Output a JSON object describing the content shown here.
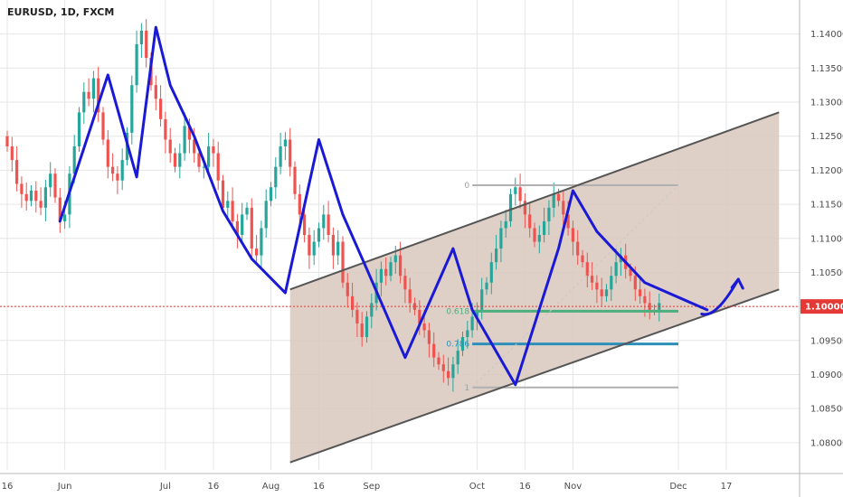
{
  "chart_data": {
    "type": "candlestick",
    "title": "EURUSD, 1D, FXCM",
    "grid": true,
    "ylim": [
      1.076,
      1.145
    ],
    "y_ticks": [
      "1.14000",
      "1.13500",
      "1.13000",
      "1.12500",
      "1.12000",
      "1.11500",
      "1.11000",
      "1.10500",
      "1.10000",
      "1.09500",
      "1.09000",
      "1.08500",
      "1.08000"
    ],
    "x_ticks": [
      {
        "label": "16",
        "index": 0
      },
      {
        "label": "Jun",
        "index": 12
      },
      {
        "label": "Jul",
        "index": 33
      },
      {
        "label": "16",
        "index": 43
      },
      {
        "label": "Aug",
        "index": 55
      },
      {
        "label": "16",
        "index": 65
      },
      {
        "label": "Sep",
        "index": 76
      },
      {
        "label": "Oct",
        "index": 98
      },
      {
        "label": "16",
        "index": 108
      },
      {
        "label": "Nov",
        "index": 118
      },
      {
        "label": "Dec",
        "index": 140
      },
      {
        "label": "17",
        "index": 150
      }
    ],
    "current_price": "1.10000",
    "colors": {
      "up": "#26a69a",
      "down": "#ef5350",
      "drawing": "#1a1ad6",
      "channel": "#555555",
      "fill": "#d9c8bd",
      "current": "#e53935"
    },
    "close": [
      1.1235,
      1.1215,
      1.118,
      1.1165,
      1.1155,
      1.117,
      1.1155,
      1.1145,
      1.1175,
      1.1195,
      1.116,
      1.1125,
      1.1135,
      1.1195,
      1.1235,
      1.1285,
      1.1315,
      1.1305,
      1.1335,
      1.1285,
      1.1245,
      1.1205,
      1.1195,
      1.1185,
      1.1215,
      1.1255,
      1.1325,
      1.1385,
      1.1405,
      1.1365,
      1.1325,
      1.1305,
      1.1275,
      1.1245,
      1.1225,
      1.1205,
      1.1225,
      1.1265,
      1.1245,
      1.1225,
      1.1205,
      1.1205,
      1.1235,
      1.1225,
      1.1185,
      1.1145,
      1.1155,
      1.1125,
      1.1105,
      1.1135,
      1.1145,
      1.1085,
      1.1075,
      1.1115,
      1.1155,
      1.1175,
      1.1205,
      1.1235,
      1.1245,
      1.1205,
      1.1165,
      1.1135,
      1.1105,
      1.1075,
      1.1095,
      1.1115,
      1.1135,
      1.1105,
      1.1075,
      1.1095,
      1.1035,
      1.1015,
      1.0995,
      1.0975,
      1.0955,
      1.0985,
      1.1005,
      1.1035,
      1.1055,
      1.1045,
      1.1065,
      1.1075,
      1.1045,
      1.1025,
      1.1005,
      1.0995,
      1.0975,
      1.0965,
      1.0945,
      1.0925,
      1.0915,
      1.0905,
      1.0895,
      1.0915,
      1.0935,
      1.0955,
      1.0965,
      1.0985,
      1.0995,
      1.1025,
      1.1035,
      1.1065,
      1.1085,
      1.1115,
      1.1125,
      1.1165,
      1.1175,
      1.1155,
      1.1135,
      1.1115,
      1.1095,
      1.1105,
      1.1125,
      1.1145,
      1.1165,
      1.1155,
      1.1135,
      1.1115,
      1.1095,
      1.1075,
      1.1065,
      1.1045,
      1.1035,
      1.1025,
      1.1015,
      1.1025,
      1.1045,
      1.1065,
      1.1075,
      1.1055,
      1.1045,
      1.1025,
      1.1015,
      1.1005,
      1.0995,
      1.0995,
      1.1005
    ]
  }
}
